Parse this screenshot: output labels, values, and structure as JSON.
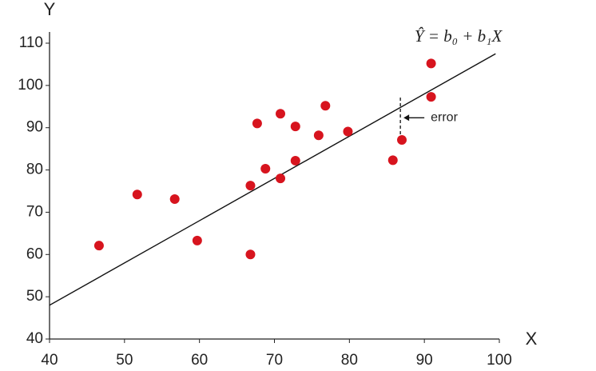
{
  "chart_data": {
    "type": "scatter",
    "x_label": "X",
    "y_label": "Y",
    "series": [
      {
        "color": "#d7141e",
        "x": [
          46.6,
          51.7,
          56.7,
          59.7,
          66.8,
          66.8,
          67.7,
          68.8,
          70.8,
          70.8,
          72.8,
          72.8,
          75.9,
          76.8,
          79.8,
          85.8,
          87.0,
          90.9,
          90.9
        ],
        "values": [
          62.1,
          74.2,
          73.1,
          63.3,
          60.0,
          76.3,
          91.0,
          80.3,
          78.0,
          93.3,
          90.3,
          82.2,
          88.2,
          95.2,
          89.1,
          82.3,
          87.1,
          97.3,
          105.2
        ]
      }
    ],
    "fit_line": {
      "label": "Ŷ = b₀ + b₁X",
      "x": [
        40,
        99.5
      ],
      "values": [
        48,
        107.5
      ]
    },
    "error": {
      "label": "error",
      "x": 86.8,
      "values": [
        87.1,
        97.6
      ]
    },
    "xlim": [
      40,
      100
    ],
    "xticks": [
      40,
      50,
      60,
      70,
      80,
      90,
      100
    ],
    "ylim": [
      40,
      110
    ],
    "yticks": [
      40,
      50,
      60,
      70,
      80,
      90,
      100,
      110
    ]
  }
}
